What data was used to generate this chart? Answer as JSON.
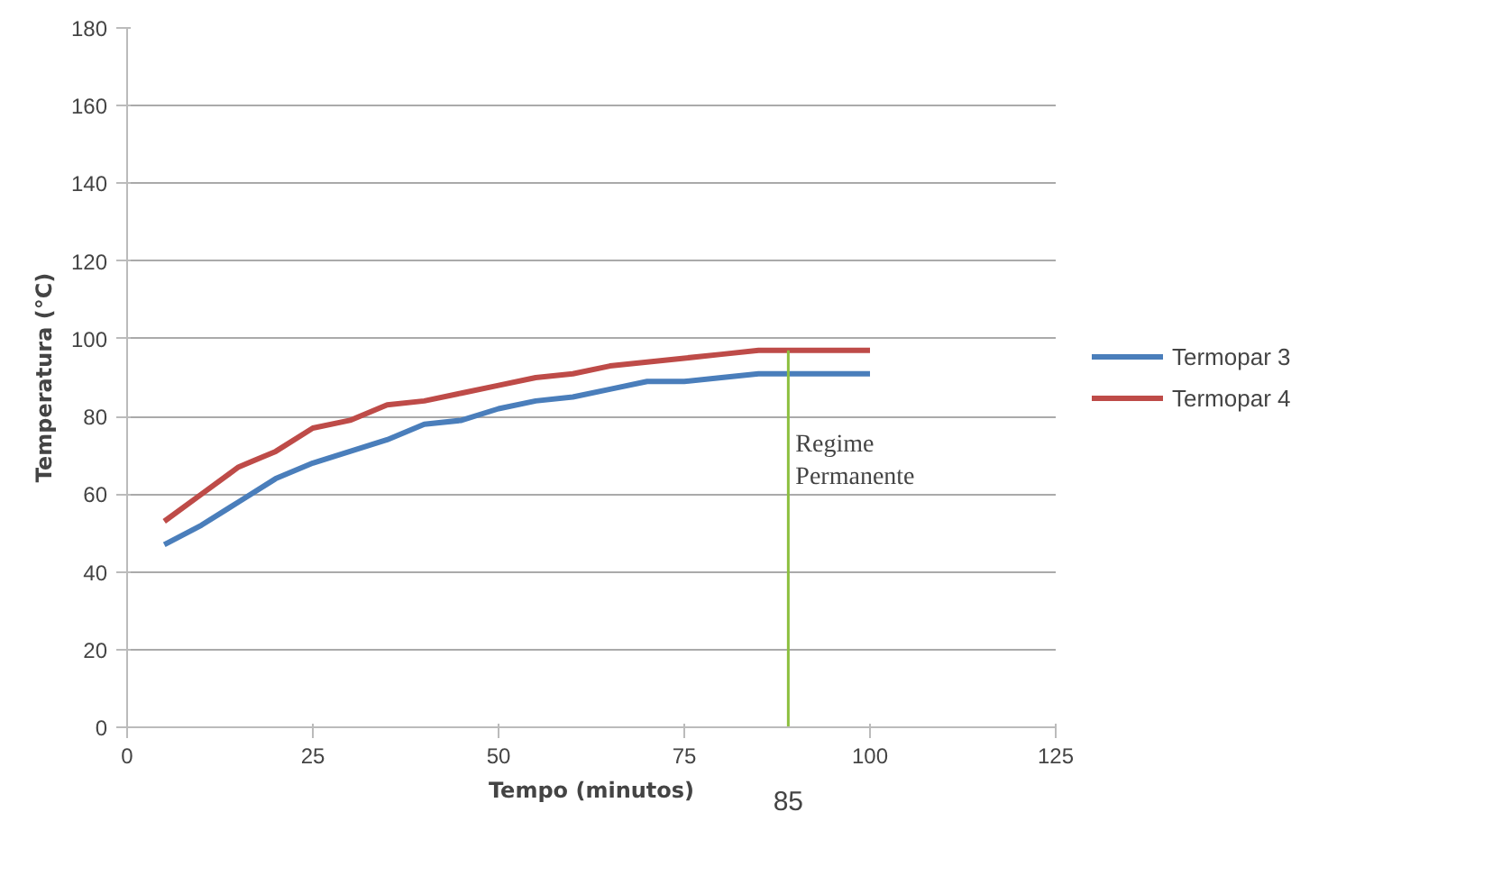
{
  "chart_data": {
    "type": "line",
    "xlabel": "Tempo (minutos)",
    "ylabel": "Temperatura (°C)",
    "x": [
      5,
      10,
      15,
      20,
      25,
      30,
      35,
      40,
      45,
      50,
      55,
      60,
      65,
      70,
      75,
      80,
      85,
      90,
      95,
      100
    ],
    "series": [
      {
        "name": "Termopar 3",
        "color": "#4a7ebb",
        "values": [
          47,
          52,
          58,
          64,
          68,
          71,
          74,
          78,
          79,
          82,
          84,
          85,
          87,
          89,
          89,
          90,
          91,
          91,
          91,
          91
        ]
      },
      {
        "name": "Termopar 4",
        "color": "#be4b48",
        "values": [
          53,
          60,
          67,
          71,
          77,
          79,
          83,
          84,
          86,
          88,
          90,
          91,
          93,
          94,
          95,
          96,
          97,
          97,
          97,
          97
        ]
      }
    ],
    "xlim": [
      0,
      125
    ],
    "xticks": [
      0,
      25,
      50,
      75,
      100,
      125
    ],
    "ylim": [
      0,
      180
    ],
    "yticks": [
      0,
      20,
      40,
      60,
      80,
      100,
      120,
      140,
      160,
      180
    ],
    "grid": "y",
    "legend": "right",
    "marker": "none",
    "line_style": "solid",
    "ref_lines": [
      {
        "axis": "x",
        "value": 89,
        "label": "Regime\nPermanente",
        "color": "#8cbf3f"
      }
    ],
    "annotations": [
      "85"
    ]
  }
}
